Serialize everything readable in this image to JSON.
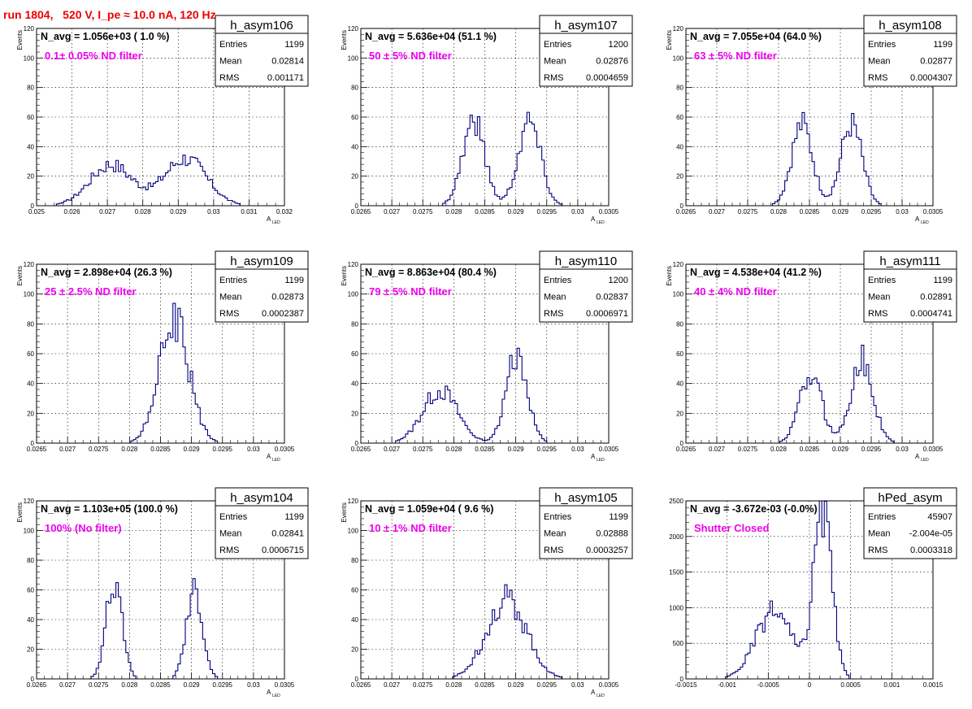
{
  "title": "run 1804,   520 V, I_pe ≈ 10.0 nA, 120 Hz",
  "stats_labels": {
    "entries": "Entries",
    "mean": "Mean",
    "rms": "RMS"
  },
  "chart_data": [
    {
      "type": "histogram",
      "name": "h_asym106",
      "navg": "N_avg = 1.056e+03 ( 1.0 %)",
      "filter": "0.1± 0.05% ND filter",
      "entries": "1199",
      "mean": "0.02814",
      "rms": "0.001171",
      "xlabel": "A",
      "xlabel_sub": "LED",
      "ylabel": "Events",
      "xlim": [
        0.025,
        0.032
      ],
      "ylim": [
        0,
        120
      ],
      "xticks": [
        "0.025",
        "0.026",
        "0.027",
        "0.028",
        "0.029",
        "0.03",
        "0.031",
        "0.032"
      ],
      "yticks": [
        "0",
        "20",
        "40",
        "60",
        "80",
        "100",
        "120"
      ],
      "peaks": [
        [
          0.0271,
          0.0006,
          28
        ],
        [
          0.0292,
          0.0006,
          32
        ]
      ]
    },
    {
      "type": "histogram",
      "name": "h_asym107",
      "navg": "N_avg = 5.636e+04 (51.1 %)",
      "filter": "50 ± 5% ND filter",
      "entries": "1200",
      "mean": "0.02876",
      "rms": "0.0004659",
      "xlabel": "A",
      "xlabel_sub": "LED",
      "ylabel": "Events",
      "xlim": [
        0.0265,
        0.0305
      ],
      "ylim": [
        0,
        120
      ],
      "xticks": [
        "0.0265",
        "0.027",
        "0.0275",
        "0.028",
        "0.0285",
        "0.029",
        "0.0295",
        "0.03",
        "0.0305"
      ],
      "yticks": [
        "0",
        "20",
        "40",
        "60",
        "80",
        "100",
        "120"
      ],
      "peaks": [
        [
          0.02832,
          0.00018,
          58
        ],
        [
          0.02922,
          0.00018,
          58
        ]
      ]
    },
    {
      "type": "histogram",
      "name": "h_asym108",
      "navg": "N_avg = 7.055e+04 (64.0 %)",
      "filter": "63 ± 5% ND filter",
      "entries": "1199",
      "mean": "0.02877",
      "rms": "0.0004307",
      "xlabel": "A",
      "xlabel_sub": "LED",
      "ylabel": "Events",
      "xlim": [
        0.0265,
        0.0305
      ],
      "ylim": [
        0,
        120
      ],
      "xticks": [
        "0.0265",
        "0.027",
        "0.0275",
        "0.028",
        "0.0285",
        "0.029",
        "0.0295",
        "0.03",
        "0.0305"
      ],
      "yticks": [
        "0",
        "20",
        "40",
        "60",
        "80",
        "100",
        "120"
      ],
      "peaks": [
        [
          0.02838,
          0.00017,
          55
        ],
        [
          0.02918,
          0.00017,
          55
        ]
      ]
    },
    {
      "type": "histogram",
      "name": "h_asym109",
      "navg": "N_avg = 2.898e+04 (26.3 %)",
      "filter": "25 ± 2.5% ND filter",
      "entries": "1199",
      "mean": "0.02873",
      "rms": "0.0002387",
      "xlabel": "A",
      "xlabel_sub": "LED",
      "ylabel": "Events",
      "xlim": [
        0.0265,
        0.0305
      ],
      "ylim": [
        0,
        120
      ],
      "xticks": [
        "0.0265",
        "0.027",
        "0.0275",
        "0.028",
        "0.0285",
        "0.029",
        "0.0295",
        "0.03",
        "0.0305"
      ],
      "yticks": [
        "0",
        "20",
        "40",
        "60",
        "80",
        "100",
        "120"
      ],
      "peaks": [
        [
          0.02872,
          0.00024,
          82
        ]
      ]
    },
    {
      "type": "histogram",
      "name": "h_asym110",
      "navg": "N_avg = 8.863e+04 (80.4 %)",
      "filter": "79 ± 5% ND filter",
      "entries": "1200",
      "mean": "0.02837",
      "rms": "0.0006971",
      "xlabel": "A",
      "xlabel_sub": "LED",
      "ylabel": "Events",
      "xlim": [
        0.0265,
        0.0305
      ],
      "ylim": [
        0,
        120
      ],
      "xticks": [
        "0.0265",
        "0.027",
        "0.0275",
        "0.028",
        "0.0285",
        "0.029",
        "0.0295",
        "0.03",
        "0.0305"
      ],
      "yticks": [
        "0",
        "20",
        "40",
        "60",
        "80",
        "100",
        "120"
      ],
      "peaks": [
        [
          0.02778,
          0.00028,
          36
        ],
        [
          0.02902,
          0.00017,
          60
        ]
      ]
    },
    {
      "type": "histogram",
      "name": "h_asym111",
      "navg": "N_avg = 4.538e+04 (41.2 %)",
      "filter": "40 ± 4% ND filter",
      "entries": "1199",
      "mean": "0.02891",
      "rms": "0.0004741",
      "xlabel": "A",
      "xlabel_sub": "LED",
      "ylabel": "Events",
      "xlim": [
        0.0265,
        0.0305
      ],
      "ylim": [
        0,
        120
      ],
      "xticks": [
        "0.0265",
        "0.027",
        "0.0275",
        "0.028",
        "0.0285",
        "0.029",
        "0.0295",
        "0.03",
        "0.0305"
      ],
      "yticks": [
        "0",
        "20",
        "40",
        "60",
        "80",
        "100",
        "120"
      ],
      "peaks": [
        [
          0.02852,
          0.00018,
          45
        ],
        [
          0.02935,
          0.00018,
          56
        ]
      ]
    },
    {
      "type": "histogram",
      "name": "h_asym104",
      "navg": "N_avg = 1.103e+05 (100.0 %)",
      "filter": "100% (No filter)",
      "entries": "1199",
      "mean": "0.02841",
      "rms": "0.0006715",
      "xlabel": "A",
      "xlabel_sub": "LED",
      "ylabel": "Events",
      "xlim": [
        0.0265,
        0.0305
      ],
      "ylim": [
        0,
        120
      ],
      "xticks": [
        "0.0265",
        "0.027",
        "0.0275",
        "0.028",
        "0.0285",
        "0.029",
        "0.0295",
        "0.03",
        "0.0305"
      ],
      "yticks": [
        "0",
        "20",
        "40",
        "60",
        "80",
        "100",
        "120"
      ],
      "peaks": [
        [
          0.02775,
          0.00013,
          64
        ],
        [
          0.02905,
          0.00013,
          62
        ]
      ]
    },
    {
      "type": "histogram",
      "name": "h_asym105",
      "navg": "N_avg = 1.059e+04 ( 9.6 %)",
      "filter": "10 ± 1% ND filter",
      "entries": "1199",
      "mean": "0.02888",
      "rms": "0.0003257",
      "xlabel": "A",
      "xlabel_sub": "LED",
      "ylabel": "Events",
      "xlim": [
        0.0265,
        0.0305
      ],
      "ylim": [
        0,
        120
      ],
      "xticks": [
        "0.0265",
        "0.027",
        "0.0275",
        "0.028",
        "0.0285",
        "0.029",
        "0.0295",
        "0.03",
        "0.0305"
      ],
      "yticks": [
        "0",
        "20",
        "40",
        "60",
        "80",
        "100",
        "120"
      ],
      "peaks": [
        [
          0.02885,
          0.00032,
          54
        ]
      ]
    },
    {
      "type": "histogram",
      "name": "hPed_asym",
      "navg": "N_avg = -3.672e-03 (-0.0%)",
      "filter": "Shutter Closed",
      "entries": "45907",
      "mean": "-2.004e-05",
      "rms": "0.0003318",
      "xlabel": "",
      "xlabel_sub": "",
      "ylabel": "",
      "xlim": [
        -0.0015,
        0.0015
      ],
      "ylim": [
        0,
        2500
      ],
      "xticks": [
        "-0.0015",
        "-0.001",
        "-0.0005",
        "0",
        "0.0005",
        "0.001",
        "0.0015"
      ],
      "yticks": [
        "0",
        "500",
        "1000",
        "1500",
        "2000",
        "2500"
      ],
      "peaks": [
        [
          -0.00043,
          0.00022,
          940
        ],
        [
          0.00016,
          0.00011,
          2330
        ]
      ]
    }
  ],
  "colors": {
    "title": "#ee0000",
    "filter_label": "#ee00ee",
    "histogram_line": "#000080",
    "grid": "#000000"
  }
}
